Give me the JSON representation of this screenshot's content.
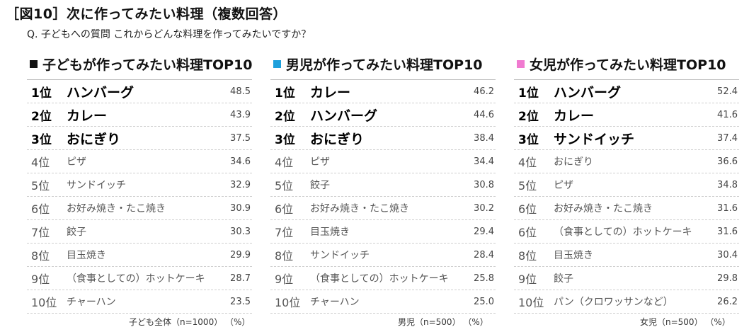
{
  "title": "［図10］次に作ってみたい料理（複数回答）",
  "question": "Q. 子どもへの質問 これからどんな料理を作ってみたいですか？",
  "colors": {
    "all_marker": "#111111",
    "boys_marker": "#1ea0dc",
    "girls_marker": "#f07ad0"
  },
  "chart_data": [
    {
      "type": "table",
      "title": "子どもが作ってみたい料理TOP10",
      "footer": "子ども全体（n=1000） （%）",
      "unit": "%",
      "rows": [
        {
          "rank": "1位",
          "dish": "ハンバーグ",
          "value": "48.5"
        },
        {
          "rank": "2位",
          "dish": "カレー",
          "value": "43.9"
        },
        {
          "rank": "3位",
          "dish": "おにぎり",
          "value": "37.5"
        },
        {
          "rank": "4位",
          "dish": "ピザ",
          "value": "34.6"
        },
        {
          "rank": "5位",
          "dish": "サンドイッチ",
          "value": "32.9"
        },
        {
          "rank": "6位",
          "dish": "お好み焼き・たこ焼き",
          "value": "30.9"
        },
        {
          "rank": "7位",
          "dish": "餃子",
          "value": "30.3"
        },
        {
          "rank": "8位",
          "dish": "目玉焼き",
          "value": "29.9"
        },
        {
          "rank": "9位",
          "dish": "（食事としての）ホットケーキ",
          "value": "28.7"
        },
        {
          "rank": "10位",
          "dish": "チャーハン",
          "value": "23.5"
        }
      ]
    },
    {
      "type": "table",
      "title": "男児が作ってみたい料理TOP10",
      "footer": "男児（n=500） （%）",
      "unit": "%",
      "rows": [
        {
          "rank": "1位",
          "dish": "カレー",
          "value": "46.2"
        },
        {
          "rank": "2位",
          "dish": "ハンバーグ",
          "value": "44.6"
        },
        {
          "rank": "3位",
          "dish": "おにぎり",
          "value": "38.4"
        },
        {
          "rank": "4位",
          "dish": "ピザ",
          "value": "34.4"
        },
        {
          "rank": "5位",
          "dish": "餃子",
          "value": "30.8"
        },
        {
          "rank": "6位",
          "dish": "お好み焼き・たこ焼き",
          "value": "30.2"
        },
        {
          "rank": "7位",
          "dish": "目玉焼き",
          "value": "29.4"
        },
        {
          "rank": "8位",
          "dish": "サンドイッチ",
          "value": "28.4"
        },
        {
          "rank": "9位",
          "dish": "（食事としての）ホットケーキ",
          "value": "25.8"
        },
        {
          "rank": "10位",
          "dish": "チャーハン",
          "value": "25.0"
        }
      ]
    },
    {
      "type": "table",
      "title": "女児が作ってみたい料理TOP10",
      "footer": "女児（n=500） （%）",
      "unit": "%",
      "rows": [
        {
          "rank": "1位",
          "dish": "ハンバーグ",
          "value": "52.4"
        },
        {
          "rank": "2位",
          "dish": "カレー",
          "value": "41.6"
        },
        {
          "rank": "3位",
          "dish": "サンドイッチ",
          "value": "37.4"
        },
        {
          "rank": "4位",
          "dish": "おにぎり",
          "value": "36.6"
        },
        {
          "rank": "5位",
          "dish": "ピザ",
          "value": "34.8"
        },
        {
          "rank": "6位",
          "dish": "お好み焼き・たこ焼き",
          "value": "31.6"
        },
        {
          "rank": "6位",
          "dish": "（食事としての）ホットケーキ",
          "value": "31.6"
        },
        {
          "rank": "8位",
          "dish": "目玉焼き",
          "value": "30.4"
        },
        {
          "rank": "9位",
          "dish": "餃子",
          "value": "29.8"
        },
        {
          "rank": "10位",
          "dish": "パン（クロワッサンなど）",
          "value": "26.2"
        }
      ]
    }
  ]
}
